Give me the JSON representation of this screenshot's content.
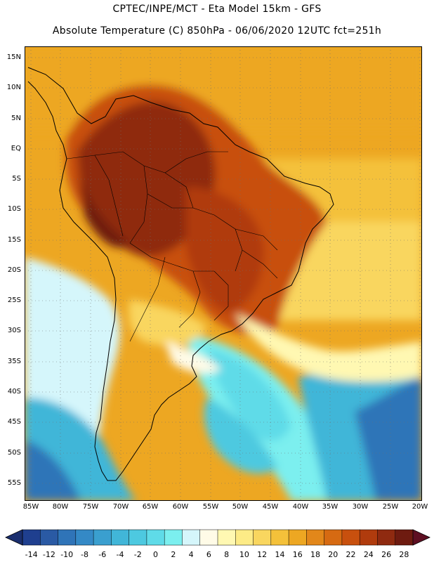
{
  "header": {
    "line1": "CPTEC/INPE/MCT -  Eta Model 15km - GFS",
    "line2": "Absolute Temperature (C) 850hPa - 06/06/2020 12UTC fct=251h"
  },
  "axes": {
    "lat_labels": [
      "15N",
      "10N",
      "5N",
      "EQ",
      "5S",
      "10S",
      "15S",
      "20S",
      "25S",
      "30S",
      "35S",
      "40S",
      "45S",
      "50S",
      "55S"
    ],
    "lon_labels": [
      "85W",
      "80W",
      "75W",
      "70W",
      "65W",
      "60W",
      "55W",
      "50W",
      "45W",
      "40W",
      "35W",
      "30W",
      "25W",
      "20W"
    ]
  },
  "colorbar": {
    "labels": [
      "-14",
      "-12",
      "-10",
      "-8",
      "-6",
      "-4",
      "-2",
      "0",
      "2",
      "4",
      "6",
      "8",
      "10",
      "12",
      "14",
      "16",
      "18",
      "20",
      "22",
      "24",
      "26",
      "28"
    ],
    "colors": [
      "#1f3f8f",
      "#2a5aa4",
      "#2f74b8",
      "#3489c6",
      "#3a9fcf",
      "#41b6d8",
      "#4dc9e0",
      "#5fdbe8",
      "#7befef",
      "#d5f6fb",
      "#fffbe7",
      "#fff8b2",
      "#fdeb86",
      "#f9d65f",
      "#f4c13a",
      "#eda722",
      "#e2871a",
      "#d66a12",
      "#c8500e",
      "#b03b0d",
      "#8f2a10",
      "#6e1b10"
    ]
  },
  "map": {
    "region": "South America",
    "variable": "Absolute Temperature (C) 850hPa"
  }
}
